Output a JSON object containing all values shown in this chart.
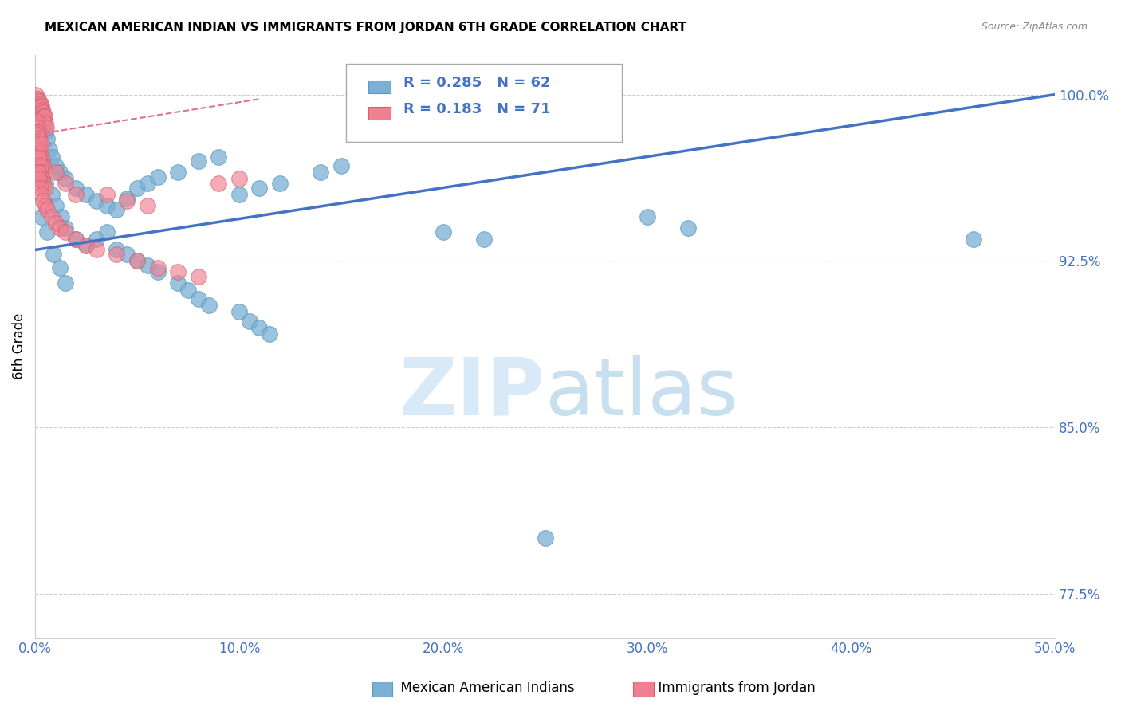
{
  "title": "MEXICAN AMERICAN INDIAN VS IMMIGRANTS FROM JORDAN 6TH GRADE CORRELATION CHART",
  "source": "Source: ZipAtlas.com",
  "ylabel_label": "6th Grade",
  "blue_R": 0.285,
  "blue_N": 62,
  "pink_R": 0.183,
  "pink_N": 71,
  "blue_scatter": [
    [
      0.2,
      97.8
    ],
    [
      0.3,
      98.2
    ],
    [
      0.4,
      98.5
    ],
    [
      0.5,
      98.3
    ],
    [
      0.6,
      98.0
    ],
    [
      0.7,
      97.5
    ],
    [
      0.8,
      97.2
    ],
    [
      1.0,
      96.8
    ],
    [
      1.2,
      96.5
    ],
    [
      1.5,
      96.2
    ],
    [
      2.0,
      95.8
    ],
    [
      2.5,
      95.5
    ],
    [
      3.0,
      95.2
    ],
    [
      3.5,
      95.0
    ],
    [
      4.0,
      94.8
    ],
    [
      4.5,
      95.3
    ],
    [
      5.0,
      95.8
    ],
    [
      5.5,
      96.0
    ],
    [
      6.0,
      96.3
    ],
    [
      7.0,
      96.5
    ],
    [
      8.0,
      97.0
    ],
    [
      9.0,
      97.2
    ],
    [
      10.0,
      95.5
    ],
    [
      11.0,
      95.8
    ],
    [
      12.0,
      96.0
    ],
    [
      0.5,
      96.0
    ],
    [
      0.8,
      95.5
    ],
    [
      1.0,
      95.0
    ],
    [
      1.3,
      94.5
    ],
    [
      1.5,
      94.0
    ],
    [
      2.0,
      93.5
    ],
    [
      2.5,
      93.2
    ],
    [
      3.0,
      93.5
    ],
    [
      3.5,
      93.8
    ],
    [
      4.0,
      93.0
    ],
    [
      4.5,
      92.8
    ],
    [
      5.0,
      92.5
    ],
    [
      5.5,
      92.3
    ],
    [
      6.0,
      92.0
    ],
    [
      7.0,
      91.5
    ],
    [
      7.5,
      91.2
    ],
    [
      8.0,
      90.8
    ],
    [
      8.5,
      90.5
    ],
    [
      10.0,
      90.2
    ],
    [
      10.5,
      89.8
    ],
    [
      11.0,
      89.5
    ],
    [
      11.5,
      89.2
    ],
    [
      14.0,
      96.5
    ],
    [
      15.0,
      96.8
    ],
    [
      20.0,
      93.8
    ],
    [
      22.0,
      93.5
    ],
    [
      30.0,
      94.5
    ],
    [
      32.0,
      94.0
    ],
    [
      46.0,
      93.5
    ],
    [
      25.0,
      80.0
    ],
    [
      0.3,
      94.5
    ],
    [
      0.6,
      93.8
    ],
    [
      0.9,
      92.8
    ],
    [
      1.2,
      92.2
    ],
    [
      1.5,
      91.5
    ]
  ],
  "pink_scatter": [
    [
      0.05,
      100.0
    ],
    [
      0.08,
      99.8
    ],
    [
      0.1,
      99.6
    ],
    [
      0.12,
      99.8
    ],
    [
      0.15,
      99.5
    ],
    [
      0.18,
      99.7
    ],
    [
      0.2,
      99.5
    ],
    [
      0.22,
      99.3
    ],
    [
      0.25,
      99.6
    ],
    [
      0.28,
      99.4
    ],
    [
      0.3,
      99.2
    ],
    [
      0.32,
      99.5
    ],
    [
      0.35,
      99.3
    ],
    [
      0.38,
      99.0
    ],
    [
      0.4,
      99.2
    ],
    [
      0.42,
      99.0
    ],
    [
      0.45,
      98.8
    ],
    [
      0.48,
      99.0
    ],
    [
      0.5,
      98.7
    ],
    [
      0.55,
      98.5
    ],
    [
      0.08,
      98.8
    ],
    [
      0.12,
      98.5
    ],
    [
      0.15,
      98.3
    ],
    [
      0.18,
      98.0
    ],
    [
      0.2,
      97.8
    ],
    [
      0.25,
      97.5
    ],
    [
      0.3,
      97.2
    ],
    [
      0.35,
      97.0
    ],
    [
      0.4,
      96.8
    ],
    [
      0.45,
      96.5
    ],
    [
      0.1,
      97.8
    ],
    [
      0.15,
      97.5
    ],
    [
      0.2,
      97.2
    ],
    [
      0.25,
      96.8
    ],
    [
      0.3,
      96.5
    ],
    [
      0.35,
      96.2
    ],
    [
      0.4,
      96.0
    ],
    [
      0.5,
      95.8
    ],
    [
      0.15,
      96.5
    ],
    [
      0.2,
      96.2
    ],
    [
      0.25,
      95.8
    ],
    [
      0.3,
      95.5
    ],
    [
      0.4,
      95.2
    ],
    [
      0.5,
      95.0
    ],
    [
      0.6,
      94.8
    ],
    [
      0.8,
      94.5
    ],
    [
      1.0,
      94.2
    ],
    [
      1.2,
      94.0
    ],
    [
      1.5,
      93.8
    ],
    [
      2.0,
      93.5
    ],
    [
      2.5,
      93.2
    ],
    [
      3.0,
      93.0
    ],
    [
      4.0,
      92.8
    ],
    [
      5.0,
      92.5
    ],
    [
      6.0,
      92.2
    ],
    [
      7.0,
      92.0
    ],
    [
      8.0,
      91.8
    ],
    [
      0.1,
      98.2
    ],
    [
      0.2,
      98.0
    ],
    [
      0.3,
      97.8
    ],
    [
      1.0,
      96.5
    ],
    [
      1.5,
      96.0
    ],
    [
      2.0,
      95.5
    ],
    [
      3.5,
      95.5
    ],
    [
      4.5,
      95.2
    ],
    [
      5.5,
      95.0
    ],
    [
      9.0,
      96.0
    ],
    [
      10.0,
      96.2
    ]
  ],
  "blue_line_x": [
    0.0,
    50.0
  ],
  "blue_line_y": [
    93.0,
    100.0
  ],
  "pink_line_x": [
    0.0,
    11.0
  ],
  "pink_line_y": [
    98.2,
    99.8
  ],
  "xlim": [
    0.0,
    50.0
  ],
  "ylim": [
    75.5,
    101.8
  ],
  "ytick_vals": [
    77.5,
    85.0,
    92.5,
    100.0
  ],
  "xtick_vals": [
    0,
    10,
    20,
    30,
    40,
    50
  ],
  "background_color": "#ffffff",
  "grid_color": "#cccccc",
  "blue_color": "#7bafd4",
  "blue_edge": "#5a9abf",
  "pink_color": "#f08090",
  "pink_edge": "#d06070",
  "blue_line_color": "#4472c4",
  "pink_line_color": "#e07090",
  "tick_label_color": "#4472c4",
  "watermark_color": "#d8eaf8",
  "legend_blue_text": "R = 0.285   N = 62",
  "legend_pink_text": "R = 0.183   N = 71",
  "legend_label_blue": "Mexican American Indians",
  "legend_label_pink": "Immigrants from Jordan"
}
